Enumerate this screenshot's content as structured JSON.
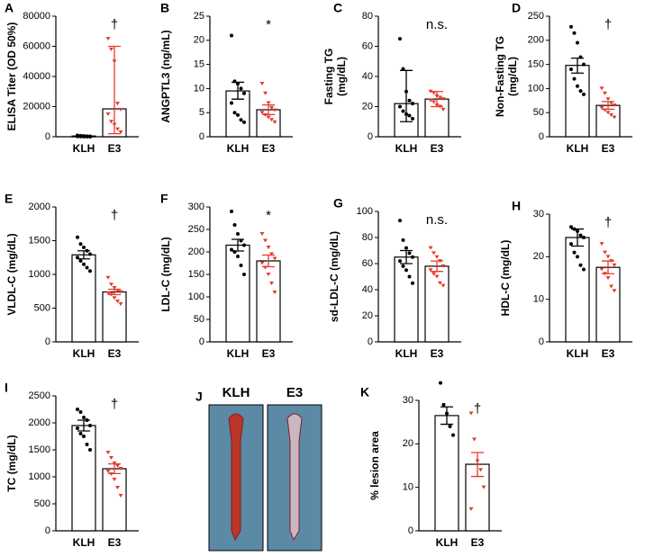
{
  "chart_data": [
    {
      "type": "bar",
      "panel": "A",
      "ylabel": [
        "ELISA Titer (OD 50%)"
      ],
      "categories": [
        "KLH",
        "E3"
      ],
      "colors": [
        "#000000",
        "#e8392b"
      ],
      "values": [
        500,
        18500
      ],
      "error_low": [
        200,
        2000
      ],
      "error_high": [
        800,
        60000
      ],
      "points": [
        [
          900,
          700,
          500,
          400,
          300,
          200,
          150,
          100,
          50,
          0
        ],
        [
          65000,
          58000,
          50000,
          22000,
          18000,
          15000,
          10000,
          8000,
          5000,
          3000
        ]
      ],
      "ylim": [
        0,
        80000
      ],
      "yticks": [
        0,
        20000,
        40000,
        60000,
        80000
      ],
      "annotation": "†"
    },
    {
      "type": "bar",
      "panel": "B",
      "ylabel": [
        "ANGPTL3 (ng/mL)"
      ],
      "categories": [
        "KLH",
        "E3"
      ],
      "colors": [
        "#000000",
        "#e8392b"
      ],
      "values": [
        9.5,
        5.6
      ],
      "error_low": [
        7.8,
        4.6
      ],
      "error_high": [
        11.3,
        6.6
      ],
      "points": [
        [
          21,
          11.5,
          11,
          10,
          9,
          7,
          5,
          4.5,
          3.5,
          3
        ],
        [
          11,
          9,
          7,
          6,
          5.5,
          5,
          4.5,
          4,
          3.5,
          3
        ]
      ],
      "ylim": [
        0,
        25
      ],
      "yticks": [
        0,
        5,
        10,
        15,
        20,
        25
      ],
      "annotation": "*"
    },
    {
      "type": "bar",
      "panel": "C",
      "ylabel": [
        "Fasting TG",
        "(mg/dL)"
      ],
      "categories": [
        "KLH",
        "E3"
      ],
      "colors": [
        "#000000",
        "#e8392b"
      ],
      "values": [
        22,
        25
      ],
      "error_low": [
        10,
        20
      ],
      "error_high": [
        44,
        30
      ],
      "points": [
        [
          65,
          45,
          30,
          24,
          22,
          20,
          17,
          15,
          14,
          12
        ],
        [
          30,
          29,
          27,
          26,
          25,
          24,
          23,
          21,
          20,
          18
        ]
      ],
      "ylim": [
        0,
        80
      ],
      "yticks": [
        0,
        20,
        40,
        60,
        80
      ],
      "annotation": "n.s."
    },
    {
      "type": "bar",
      "panel": "D",
      "ylabel": [
        "Non-Fasting TG",
        "(mg/dL)"
      ],
      "categories": [
        "KLH",
        "E3"
      ],
      "colors": [
        "#000000",
        "#e8392b"
      ],
      "values": [
        148,
        65
      ],
      "error_low": [
        132,
        57
      ],
      "error_high": [
        163,
        73
      ],
      "points": [
        [
          228,
          215,
          195,
          165,
          150,
          140,
          120,
          105,
          95,
          88
        ],
        [
          100,
          90,
          78,
          70,
          65,
          60,
          55,
          50,
          45,
          40
        ]
      ],
      "ylim": [
        0,
        250
      ],
      "yticks": [
        0,
        50,
        100,
        150,
        200,
        250
      ],
      "annotation": "†"
    },
    {
      "type": "bar",
      "panel": "E",
      "ylabel": [
        "VLDL-C (mg/dL)"
      ],
      "categories": [
        "KLH",
        "E3"
      ],
      "colors": [
        "#000000",
        "#e8392b"
      ],
      "values": [
        1290,
        740
      ],
      "error_low": [
        1230,
        700
      ],
      "error_high": [
        1350,
        780
      ],
      "points": [
        [
          1550,
          1450,
          1400,
          1350,
          1300,
          1250,
          1200,
          1150,
          1100,
          1050
        ],
        [
          950,
          850,
          800,
          760,
          740,
          720,
          700,
          650,
          600,
          560
        ]
      ],
      "ylim": [
        0,
        2000
      ],
      "yticks": [
        0,
        500,
        1000,
        1500,
        2000
      ],
      "annotation": "†"
    },
    {
      "type": "bar",
      "panel": "F",
      "ylabel": [
        "LDL-C (mg/dL)"
      ],
      "categories": [
        "KLH",
        "E3"
      ],
      "colors": [
        "#000000",
        "#e8392b"
      ],
      "values": [
        215,
        180
      ],
      "error_low": [
        202,
        167
      ],
      "error_high": [
        228,
        193
      ],
      "points": [
        [
          290,
          260,
          240,
          225,
          215,
          205,
          200,
          190,
          170,
          150
        ],
        [
          240,
          225,
          210,
          195,
          185,
          175,
          165,
          150,
          130,
          110
        ]
      ],
      "ylim": [
        0,
        300
      ],
      "yticks": [
        0,
        50,
        100,
        150,
        200,
        250,
        300
      ],
      "annotation": "*"
    },
    {
      "type": "bar",
      "panel": "G",
      "ylabel": [
        "sd-LDL-C (mg/dL)"
      ],
      "categories": [
        "KLH",
        "E3"
      ],
      "colors": [
        "#000000",
        "#e8392b"
      ],
      "values": [
        65,
        58
      ],
      "error_low": [
        60,
        54
      ],
      "error_high": [
        70,
        62
      ],
      "points": [
        [
          93,
          78,
          72,
          68,
          65,
          62,
          58,
          55,
          50,
          45
        ],
        [
          72,
          68,
          65,
          62,
          58,
          55,
          52,
          50,
          45,
          43
        ]
      ],
      "ylim": [
        0,
        100
      ],
      "yticks": [
        0,
        20,
        40,
        60,
        80,
        100
      ],
      "annotation": "n.s."
    },
    {
      "type": "bar",
      "panel": "H",
      "ylabel": [
        "HDL-C (mg/dL)"
      ],
      "categories": [
        "KLH",
        "E3"
      ],
      "colors": [
        "#000000",
        "#e8392b"
      ],
      "values": [
        24.5,
        17.5
      ],
      "error_low": [
        22.5,
        16
      ],
      "error_high": [
        26.5,
        19
      ],
      "points": [
        [
          27,
          26.5,
          26,
          25,
          24.5,
          23,
          21,
          20,
          18,
          17
        ],
        [
          23,
          21,
          20,
          19,
          18,
          17,
          16,
          15,
          13,
          12
        ]
      ],
      "ylim": [
        0,
        30
      ],
      "yticks": [
        0,
        10,
        20,
        30
      ],
      "annotation": "†"
    },
    {
      "type": "bar",
      "panel": "I",
      "ylabel": [
        "TC (mg/dL)"
      ],
      "categories": [
        "KLH",
        "E3"
      ],
      "colors": [
        "#000000",
        "#e8392b"
      ],
      "values": [
        1950,
        1150
      ],
      "error_low": [
        1850,
        1060
      ],
      "error_high": [
        2050,
        1240
      ],
      "points": [
        [
          2250,
          2200,
          2100,
          2050,
          1950,
          1900,
          1800,
          1750,
          1600,
          1500
        ],
        [
          1450,
          1350,
          1250,
          1200,
          1150,
          1100,
          1050,
          950,
          800,
          650
        ]
      ],
      "ylim": [
        0,
        2500
      ],
      "yticks": [
        0,
        500,
        1000,
        1500,
        2000,
        2500
      ],
      "annotation": "†"
    },
    {
      "type": "image",
      "panel": "J",
      "labels": [
        "KLH",
        "E3"
      ]
    },
    {
      "type": "bar",
      "panel": "K",
      "ylabel": [
        "% lesion area"
      ],
      "categories": [
        "KLH",
        "E3"
      ],
      "colors": [
        "#000000",
        "#e8392b"
      ],
      "values": [
        26.5,
        15.3
      ],
      "error_low": [
        24.5,
        12.5
      ],
      "error_high": [
        28.5,
        18
      ],
      "points": [
        [
          34,
          29,
          27,
          24,
          22
        ],
        [
          27,
          21,
          16,
          14,
          10,
          5
        ]
      ],
      "ylim": [
        0,
        30
      ],
      "yticks": [
        0,
        10,
        20,
        30
      ],
      "annotation": "†"
    }
  ]
}
